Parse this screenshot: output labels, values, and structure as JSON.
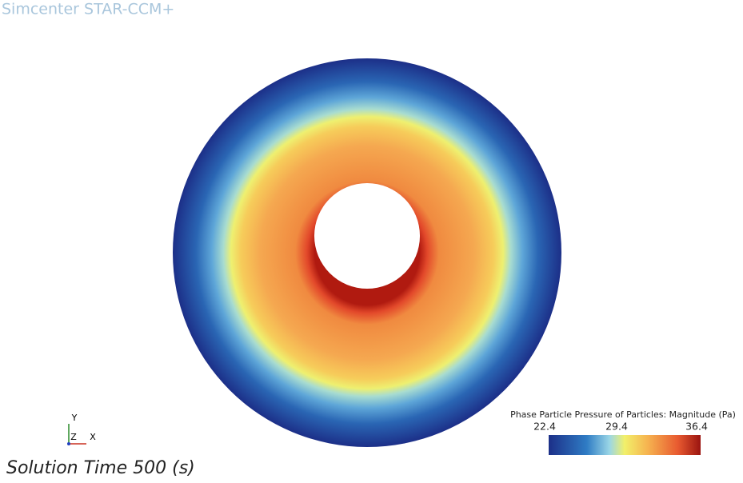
{
  "header": {
    "title": "Simcenter STAR-CCM+"
  },
  "legend": {
    "title": "Phase Particle Pressure of Particles: Magnitude (Pa)",
    "tick_labels": [
      "22.4",
      "29.4",
      "36.4"
    ]
  },
  "triad": {
    "labels": [
      "Y",
      "Z",
      "X"
    ]
  },
  "footer": {
    "text": "Solution Time 500 (s)"
  }
}
